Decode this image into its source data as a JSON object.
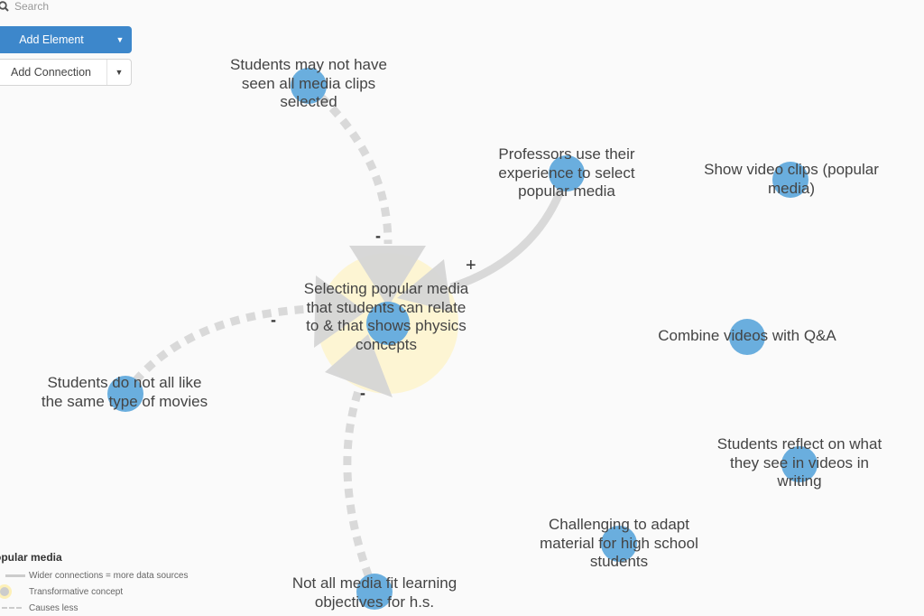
{
  "toolbar": {
    "search_placeholder": "Search",
    "add_element": "Add Element",
    "add_connection": "Add Connection"
  },
  "colors": {
    "node": "#6aaede",
    "halo": "#fdf5d3",
    "connection": "#d9d9d9",
    "primary_button": "#3d87cb"
  },
  "nodes": {
    "center": {
      "lines": [
        "Selecting popular media",
        "that students can relate",
        "to & that shows physics",
        "concepts"
      ]
    },
    "n1": {
      "lines": [
        "Students may not have",
        "seen all media clips",
        "selected"
      ]
    },
    "n2": {
      "lines": [
        "Professors use their",
        "experience to select",
        "popular media"
      ]
    },
    "n3": {
      "lines": [
        "Show video clips (popular",
        "media)"
      ]
    },
    "n4": {
      "lines": [
        "Combine videos with Q&A"
      ]
    },
    "n5": {
      "lines": [
        "Students do not all like",
        "the same type of movies"
      ]
    },
    "n6": {
      "lines": [
        "Students reflect on what",
        "they see in videos in",
        "writing"
      ]
    },
    "n7": {
      "lines": [
        "Challenging to adapt",
        "material for high school",
        "students"
      ]
    },
    "n8": {
      "lines": [
        "Not all media fit learning",
        "objectives for h.s."
      ]
    }
  },
  "connections": [
    {
      "from": "n1",
      "to": "center",
      "type": "causes less",
      "sign": "-"
    },
    {
      "from": "n2",
      "to": "center",
      "type": "causes more",
      "sign": "+"
    },
    {
      "from": "n5",
      "to": "center",
      "type": "causes less",
      "sign": "-"
    },
    {
      "from": "n8",
      "to": "center",
      "type": "causes less",
      "sign": "-"
    }
  ],
  "legend": {
    "title": "opular media",
    "items": [
      "Wider connections = more data sources",
      "Transformative concept",
      "Causes less"
    ]
  }
}
